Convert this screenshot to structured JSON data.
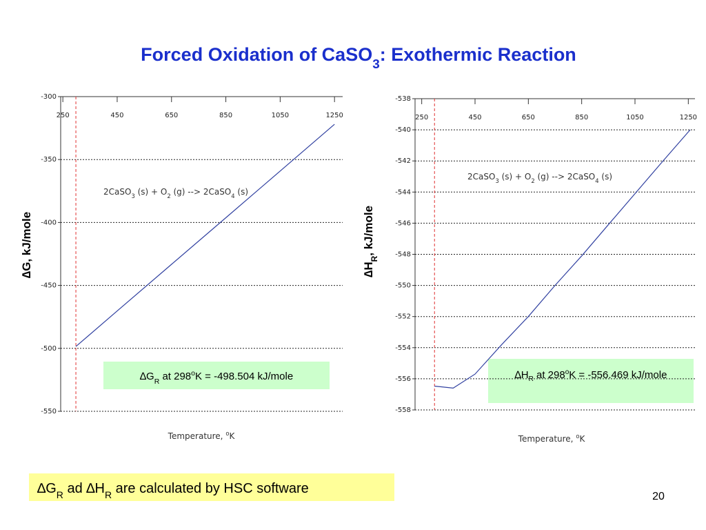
{
  "slide": {
    "title": [
      "Forced Oxidation of CaSO",
      "3",
      ": Exothermic Reaction"
    ],
    "note": [
      "∆G",
      "R",
      " ad ∆H",
      "R",
      " are calculated by HSC software"
    ],
    "page_number": "20"
  },
  "chart_data": [
    {
      "type": "line",
      "y_label": [
        "∆G, kJ/mole"
      ],
      "x_label": [
        "Temperature, ",
        "o",
        "K"
      ],
      "equation": [
        "2CaSO",
        "3",
        " (s) + O",
        "2",
        " (g) --> 2CaSO",
        "4",
        " (s)"
      ],
      "box": [
        "∆G",
        "R",
        " at 298",
        "o",
        "K = -498.504 kJ/mole"
      ],
      "reference_x": 298,
      "x": [
        298,
        450,
        650,
        850,
        1050,
        1250
      ],
      "series": [
        {
          "name": "∆G",
          "color": "#3040a0",
          "values": [
            -498.5,
            -470.3,
            -433.2,
            -396.2,
            -359.1,
            -322.0
          ]
        }
      ],
      "xlim": [
        242,
        1280
      ],
      "ylim": [
        -550,
        -300
      ],
      "xticks": [
        250,
        450,
        650,
        850,
        1050,
        1250
      ],
      "yticks": [
        -300,
        -350,
        -400,
        -450,
        -500,
        -550
      ],
      "grid": true,
      "reference_color": "#e03030"
    },
    {
      "type": "line",
      "y_label": [
        "∆H",
        "R",
        ", kJ/mole"
      ],
      "x_label": [
        "Temperature, ",
        "o",
        "K"
      ],
      "equation": [
        "2CaSO",
        "3",
        " (s) + O",
        "2",
        " (g) --> 2CaSO",
        "4",
        " (s)"
      ],
      "box": [
        "∆H",
        "R",
        " at 298",
        "o",
        "K = -556.469 kJ/mole"
      ],
      "reference_x": 298,
      "x": [
        298,
        368,
        450,
        550,
        650,
        750,
        850,
        950,
        1050,
        1150,
        1257
      ],
      "series": [
        {
          "name": "∆H",
          "color": "#3040a0",
          "values": [
            -556.47,
            -556.6,
            -555.7,
            -553.8,
            -552.0,
            -550.0,
            -548.1,
            -546.1,
            -544.1,
            -542.1,
            -540.0
          ]
        }
      ],
      "xlim": [
        225,
        1275
      ],
      "ylim": [
        -558,
        -538
      ],
      "xticks": [
        250,
        450,
        650,
        850,
        1050,
        1250
      ],
      "yticks": [
        -538,
        -540,
        -542,
        -544,
        -546,
        -548,
        -550,
        -552,
        -554,
        -556,
        -558
      ],
      "grid": true,
      "reference_color": "#e03030"
    }
  ]
}
